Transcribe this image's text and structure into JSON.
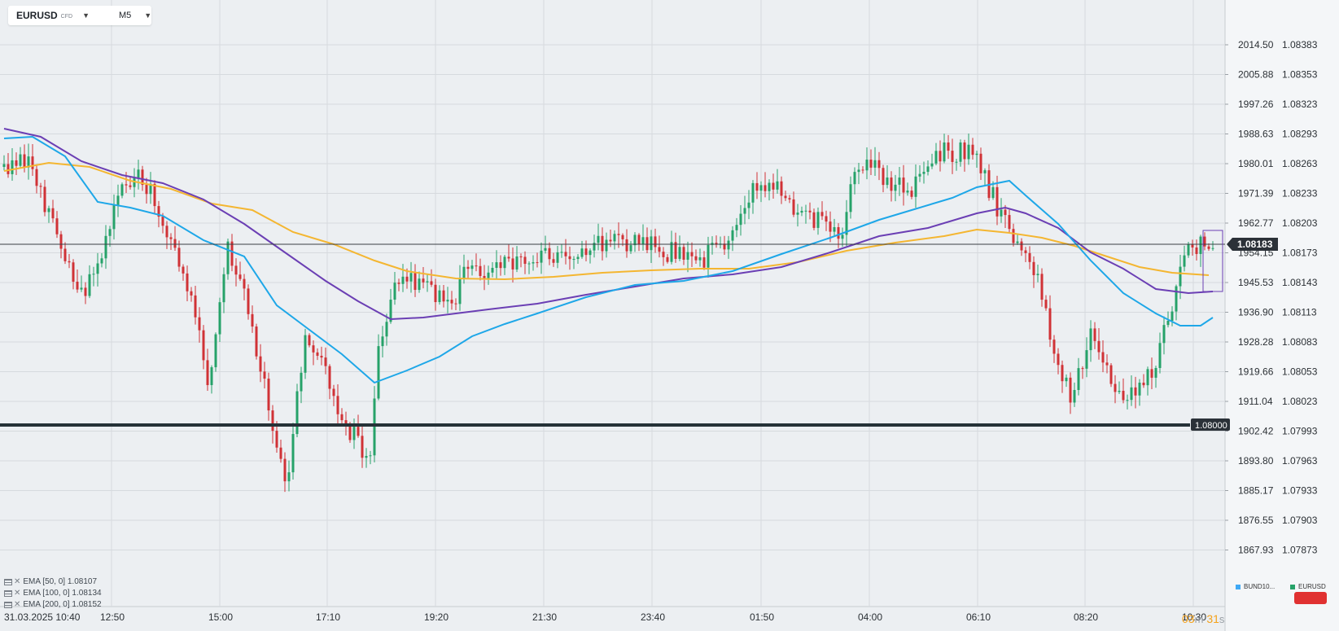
{
  "symbol": {
    "name": "EURUSD",
    "type": "CFD",
    "timeframe": "M5"
  },
  "price_axis_left": [
    "2014.50",
    "2005.88",
    "1997.26",
    "1988.63",
    "1980.01",
    "1971.39",
    "1962.77",
    "1954.15",
    "1945.53",
    "1936.90",
    "1928.28",
    "1919.66",
    "1911.04",
    "1902.42",
    "1893.80",
    "1885.17",
    "1876.55",
    "1867.93"
  ],
  "price_axis_right": [
    "1.08383",
    "1.08353",
    "1.08323",
    "1.08293",
    "1.08263",
    "1.08233",
    "1.08203",
    "1.08173",
    "1.08143",
    "1.08113",
    "1.08083",
    "1.08053",
    "1.08023",
    "1.07993",
    "1.07963",
    "1.07933",
    "1.07903",
    "1.07873"
  ],
  "time_axis": [
    "31.03.2025  10:40",
    "12:50",
    "15:00",
    "17:10",
    "19:20",
    "21:30",
    "23:40",
    "01:50",
    "04:00",
    "06:10",
    "08:20",
    "10:30"
  ],
  "current_price_label": "1.08183",
  "horizontal_line_label": "1.08000",
  "indicators": [
    {
      "label": "EMA  [50,  0]  1.08107",
      "color": "#1ea7e8"
    },
    {
      "label": "EMA  [100,  0]  1.08134",
      "color": "#6b3fb4"
    },
    {
      "label": "EMA  [200,  0]  1.08152",
      "color": "#f4b631"
    }
  ],
  "countdown": {
    "minutes": "03",
    "m": "m",
    "seconds": "31",
    "s": "s"
  },
  "legend": [
    {
      "label": "BUND10...",
      "color": "#3fa9f5"
    },
    {
      "label": "EURUSD",
      "color": "#26a269"
    }
  ],
  "colors": {
    "bull": "#26a269",
    "bear": "#d03236",
    "hline": "#263238",
    "price_badge": "#2b3138",
    "crosshair": "#3a3f44"
  }
}
